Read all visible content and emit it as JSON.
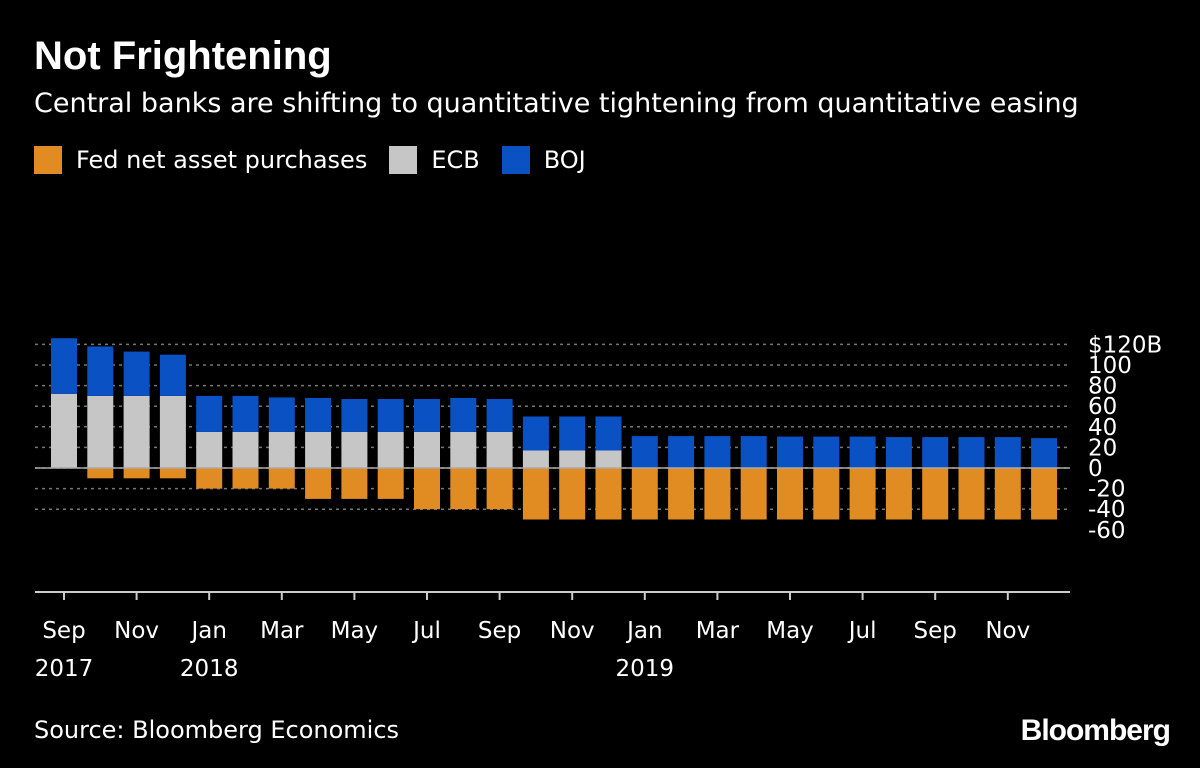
{
  "chart_data": {
    "type": "bar",
    "stacked": true,
    "title": "Not Frightening",
    "subtitle": "Central banks are shifting to quantitative tightening from quantitative easing",
    "categories": [
      "Sep 2017",
      "Oct 2017",
      "Nov 2017",
      "Dec 2017",
      "Jan 2018",
      "Feb 2018",
      "Mar 2018",
      "Apr 2018",
      "May 2018",
      "Jun 2018",
      "Jul 2018",
      "Aug 2018",
      "Sep 2018",
      "Oct 2018",
      "Nov 2018",
      "Dec 2018",
      "Jan 2019",
      "Feb 2019",
      "Mar 2019",
      "Apr 2019",
      "May 2019",
      "Jun 2019",
      "Jul 2019",
      "Aug 2019",
      "Sep 2019",
      "Oct 2019",
      "Nov 2019",
      "Dec 2019"
    ],
    "series": [
      {
        "name": "Fed net asset purchases",
        "color": "#E08C22",
        "values": [
          0,
          -10,
          -10,
          -10,
          -20,
          -20,
          -20,
          -30,
          -30,
          -30,
          -40,
          -40,
          -40,
          -50,
          -50,
          -50,
          -50,
          -50,
          -50,
          -50,
          -50,
          -50,
          -50,
          -50,
          -50,
          -50,
          -50,
          -50
        ]
      },
      {
        "name": "ECB",
        "color": "#C6C6C6",
        "values": [
          72,
          70,
          70,
          70,
          35,
          35,
          35,
          35,
          35,
          35,
          35,
          35,
          35,
          17,
          17,
          17,
          0,
          0,
          0,
          0,
          0,
          0,
          0,
          0,
          0,
          0,
          0,
          0
        ]
      },
      {
        "name": "BOJ",
        "color": "#0A52C3",
        "values": [
          54,
          48,
          43,
          40,
          35,
          35,
          33.5,
          33,
          32,
          32,
          32,
          33,
          32,
          33,
          33,
          33,
          31,
          31,
          31,
          31,
          30.5,
          30.5,
          30.5,
          30,
          30,
          30,
          30,
          29
        ]
      }
    ],
    "xtick_labels": [
      {
        "m": "Sep",
        "y": "2017"
      },
      {
        "m": "Nov",
        "y": ""
      },
      {
        "m": "Jan",
        "y": "2018"
      },
      {
        "m": "Mar",
        "y": ""
      },
      {
        "m": "May",
        "y": ""
      },
      {
        "m": "Jul",
        "y": ""
      },
      {
        "m": "Sep",
        "y": ""
      },
      {
        "m": "Nov",
        "y": ""
      },
      {
        "m": "Jan",
        "y": "2019"
      },
      {
        "m": "Mar",
        "y": ""
      },
      {
        "m": "May",
        "y": ""
      },
      {
        "m": "Jul",
        "y": ""
      },
      {
        "m": "Sep",
        "y": ""
      },
      {
        "m": "Nov",
        "y": ""
      }
    ],
    "yticks": [
      120,
      100,
      80,
      60,
      40,
      20,
      0,
      -20,
      -40,
      -60
    ],
    "ytick_labels": [
      "$120B",
      "100",
      "80",
      "60",
      "40",
      "20",
      "0",
      "-20",
      "-40",
      "-60"
    ],
    "ylim": [
      -60,
      125
    ],
    "legend": "top-left",
    "grid": true
  },
  "source": "Source: Bloomberg Economics",
  "logo": "Bloomberg"
}
